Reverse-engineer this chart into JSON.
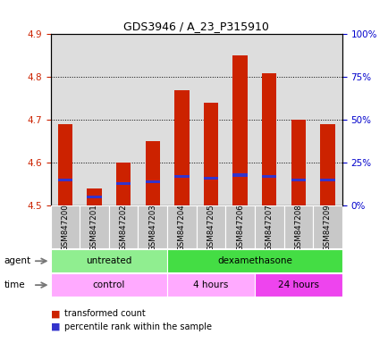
{
  "title": "GDS3946 / A_23_P315910",
  "samples": [
    "GSM847200",
    "GSM847201",
    "GSM847202",
    "GSM847203",
    "GSM847204",
    "GSM847205",
    "GSM847206",
    "GSM847207",
    "GSM847208",
    "GSM847209"
  ],
  "red_values": [
    4.69,
    4.54,
    4.6,
    4.65,
    4.77,
    4.74,
    4.85,
    4.81,
    4.7,
    4.69
  ],
  "blue_pct": [
    15,
    5,
    13,
    14,
    17,
    16,
    18,
    17,
    15,
    15
  ],
  "ylim_left": [
    4.5,
    4.9
  ],
  "ylim_right": [
    0,
    100
  ],
  "yticks_left": [
    4.5,
    4.6,
    4.7,
    4.8,
    4.9
  ],
  "yticks_right": [
    0,
    25,
    50,
    75,
    100
  ],
  "ytick_labels_right": [
    "0%",
    "25%",
    "50%",
    "75%",
    "100%"
  ],
  "bar_width": 0.5,
  "bar_color_red": "#CC2200",
  "bar_color_blue": "#3333CC",
  "left_axis_color": "#CC2200",
  "right_axis_color": "#0000CC",
  "background_color": "#FFFFFF",
  "plot_bg_color": "#DDDDDD",
  "agent_boxes": [
    {
      "label": "untreated",
      "xstart": -0.5,
      "xend": 3.5,
      "color": "#90EE90"
    },
    {
      "label": "dexamethasone",
      "xstart": 3.5,
      "xend": 9.5,
      "color": "#44DD44"
    }
  ],
  "time_boxes": [
    {
      "label": "control",
      "xstart": -0.5,
      "xend": 3.5,
      "color": "#FFAAFF"
    },
    {
      "label": "4 hours",
      "xstart": 3.5,
      "xend": 6.5,
      "color": "#FFAAFF"
    },
    {
      "label": "24 hours",
      "xstart": 6.5,
      "xend": 9.5,
      "color": "#EE44EE"
    }
  ]
}
